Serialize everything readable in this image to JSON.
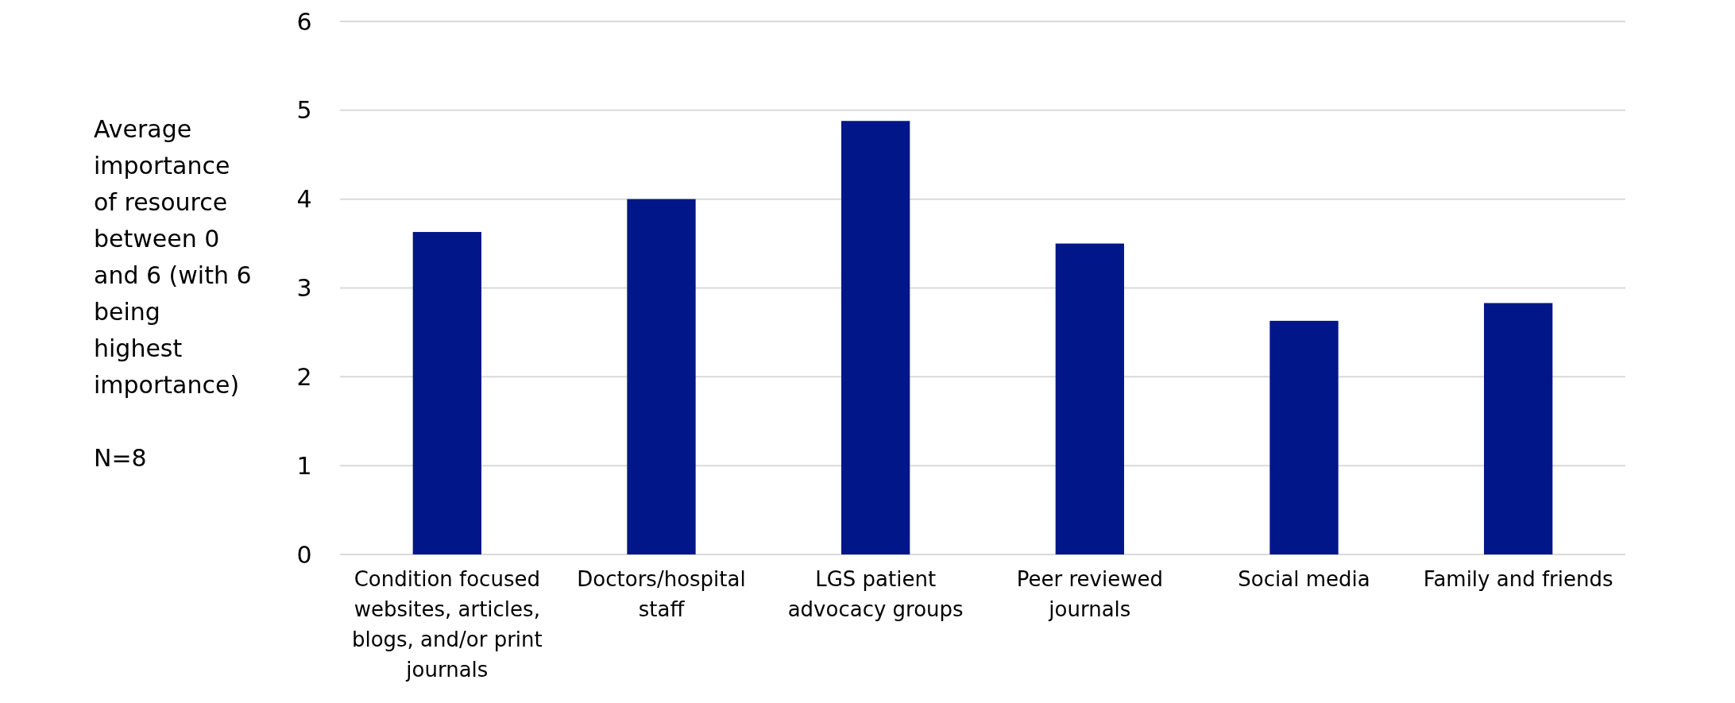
{
  "chart_data": {
    "type": "bar",
    "categories": [
      "Condition focused websites, articles, blogs, and/or print journals",
      "Doctors/hospital staff",
      "LGS patient advocacy groups",
      "Peer reviewed journals",
      "Social media",
      "Family and friends"
    ],
    "values": [
      3.63,
      4.0,
      4.88,
      3.5,
      2.63,
      2.83
    ],
    "color": "#001689",
    "ylabel": "Average importance of resource between 0 and 6 (with 6 being highest importance)",
    "annotations": [
      "N=8"
    ],
    "ylim": [
      0,
      6
    ],
    "yticks": [
      0,
      1,
      2,
      3,
      4,
      5,
      6
    ],
    "grid": "y"
  }
}
